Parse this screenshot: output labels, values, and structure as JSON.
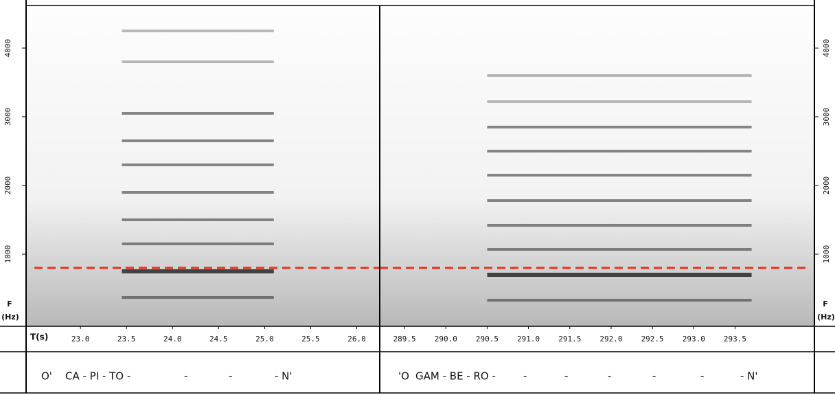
{
  "chart_data": [
    {
      "type": "spectrogram",
      "y_label_top": "F",
      "y_label_bottom": "(Hz)",
      "x_label": "T(s)",
      "xlim": [
        22.41,
        26.25
      ],
      "xticks": [
        {
          "value": 23,
          "label": "23.0"
        },
        23.5,
        {
          "value": 24,
          "label": "24.0"
        },
        24.5,
        {
          "value": 25,
          "label": "25.0"
        },
        25.5,
        {
          "value": 26,
          "label": "26.0"
        }
      ],
      "ylim": [
        -50,
        4620
      ],
      "yticks": [
        1000,
        2000,
        3000,
        4000
      ],
      "harmonics": [
        370,
        750,
        1150,
        1500,
        1900,
        2300,
        2650,
        3050,
        3800,
        4250
      ],
      "harmonic_start": 23.45,
      "harmonic_end": 25.1,
      "harmonic_color": "#3a3a3a",
      "reference_line": 800,
      "reference_color": "#e8321e",
      "lyrics": [
        "O'",
        "CA - PI - TO -",
        "-",
        "-",
        "- N'"
      ]
    },
    {
      "type": "spectrogram",
      "y_label_top": "F",
      "y_label_bottom": "(Hz)",
      "xlim": [
        289.2,
        294.46
      ],
      "xticks": [
        289.5,
        {
          "value": 290,
          "label": "290.0"
        },
        290.5,
        {
          "value": 291,
          "label": "291.0"
        },
        291.5,
        {
          "value": 292,
          "label": "292.0"
        },
        292.5,
        {
          "value": 293,
          "label": "293.0"
        },
        293.5
      ],
      "ylim": [
        -50,
        4620
      ],
      "yticks": [
        1000,
        2000,
        3000,
        4000
      ],
      "harmonics": [
        330,
        700,
        1070,
        1420,
        1780,
        2150,
        2500,
        2850,
        3220,
        3600
      ],
      "harmonic_start": 290.5,
      "harmonic_end": 293.7,
      "harmonic_color": "#3a3a3a",
      "reference_line": 800,
      "reference_color": "#e8321e",
      "lyrics": [
        "'O",
        "GAM - BE - RO -",
        "-",
        "-",
        "-",
        "-",
        "-",
        "- N'"
      ]
    }
  ]
}
